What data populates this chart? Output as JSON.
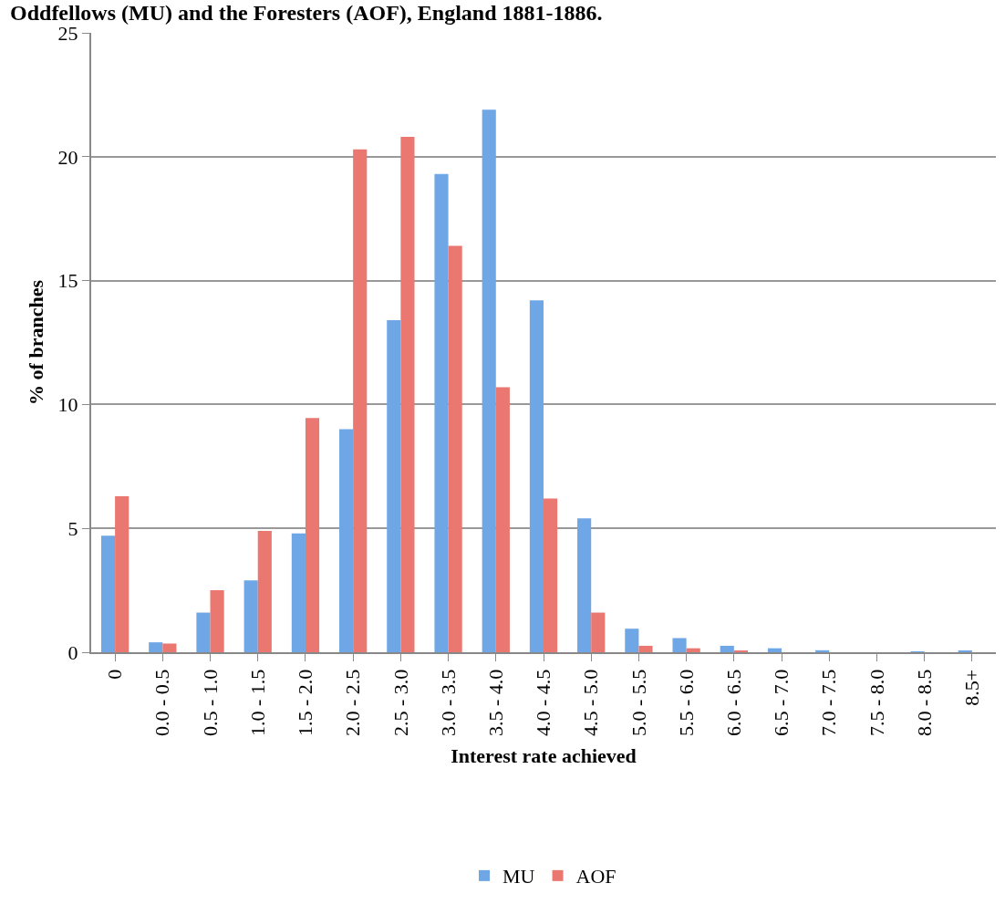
{
  "chart_data": {
    "type": "bar",
    "title": "Oddfellows (MU) and the Foresters (AOF), England 1881-1886.",
    "xlabel": "Interest rate achieved",
    "ylabel": "% of branches",
    "categories": [
      "0",
      "0.0 - 0.5",
      "0.5 - 1.0",
      "1.0 - 1.5",
      "1.5 - 2.0",
      "2.0 - 2.5",
      "2.5 - 3.0",
      "3.0 - 3.5",
      "3.5 - 4.0",
      "4.0 - 4.5",
      "4.5 - 5.0",
      "5.0 - 5.5",
      "5.5 - 6.0",
      "6.0 - 6.5",
      "6.5 - 7.0",
      "7.0 - 7.5",
      "7.5 - 8.0",
      "8.0 - 8.5",
      "8.5+"
    ],
    "series": [
      {
        "name": "MU",
        "color": "#6ea6e6",
        "values": [
          4.7,
          0.4,
          1.6,
          2.9,
          4.8,
          9.0,
          13.4,
          19.3,
          21.9,
          14.2,
          5.4,
          0.95,
          0.57,
          0.26,
          0.16,
          0.08,
          0,
          0.02,
          0.05
        ]
      },
      {
        "name": "AOF",
        "color": "#ea7770",
        "values": [
          6.3,
          0.35,
          2.5,
          4.9,
          9.45,
          20.3,
          20.8,
          16.4,
          10.7,
          6.2,
          1.6,
          0.26,
          0.16,
          0.06,
          0,
          0,
          0,
          0,
          0
        ]
      }
    ],
    "ylim": [
      0,
      25
    ],
    "yticks": [
      0,
      5,
      10,
      15,
      20,
      25
    ],
    "grid": "y",
    "legend": "bottom"
  }
}
